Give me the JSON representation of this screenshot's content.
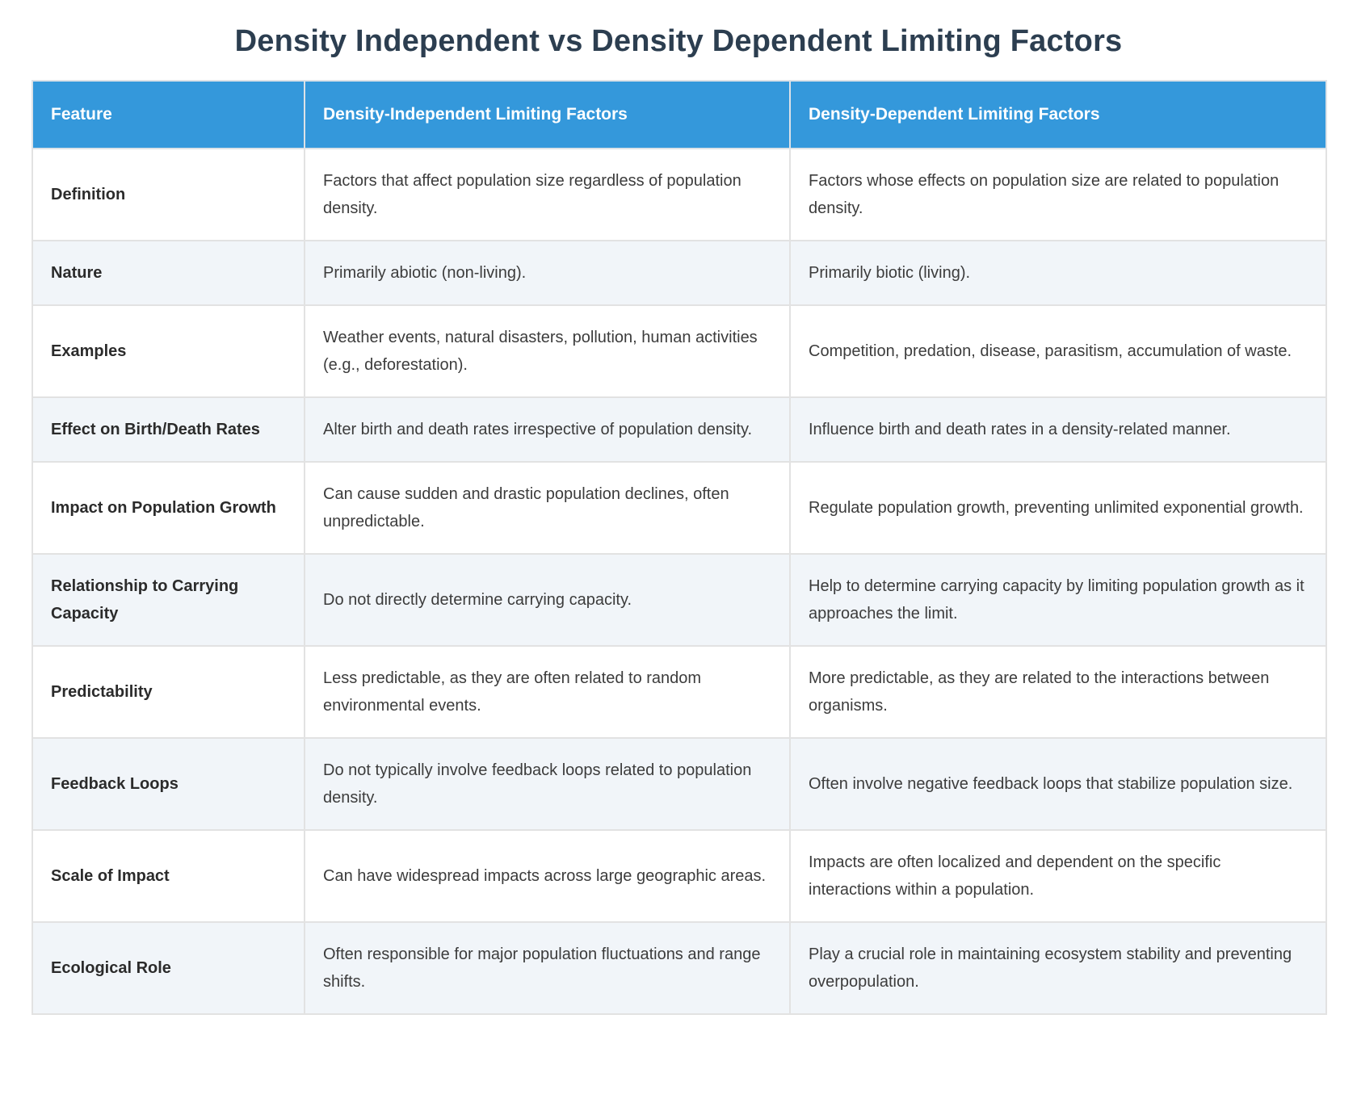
{
  "page": {
    "title": "Density Independent vs Density Dependent Limiting Factors"
  },
  "colors": {
    "header_bg": "#3498db",
    "header_text": "#ffffff",
    "row_alt_bg": "#f1f5f9",
    "row_bg": "#ffffff",
    "border": "#e2e2e2",
    "title_text": "#2c3e50",
    "body_text": "#3c3c3c"
  },
  "table": {
    "headers": [
      "Feature",
      "Density-Independent Limiting Factors",
      "Density-Dependent Limiting Factors"
    ],
    "rows": [
      {
        "feature": "Definition",
        "independent": "Factors that affect population size regardless of population density.",
        "dependent": "Factors whose effects on population size are related to population density."
      },
      {
        "feature": "Nature",
        "independent": "Primarily abiotic (non-living).",
        "dependent": "Primarily biotic (living)."
      },
      {
        "feature": "Examples",
        "independent": "Weather events, natural disasters, pollution, human activities (e.g., deforestation).",
        "dependent": "Competition, predation, disease, parasitism, accumulation of waste."
      },
      {
        "feature": "Effect on Birth/Death Rates",
        "independent": "Alter birth and death rates irrespective of population density.",
        "dependent": "Influence birth and death rates in a density-related manner."
      },
      {
        "feature": "Impact on Population Growth",
        "independent": "Can cause sudden and drastic population declines, often unpredictable.",
        "dependent": "Regulate population growth, preventing unlimited exponential growth."
      },
      {
        "feature": "Relationship to Carrying Capacity",
        "independent": "Do not directly determine carrying capacity.",
        "dependent": "Help to determine carrying capacity by limiting population growth as it approaches the limit."
      },
      {
        "feature": "Predictability",
        "independent": "Less predictable, as they are often related to random environmental events.",
        "dependent": "More predictable, as they are related to the interactions between organisms."
      },
      {
        "feature": "Feedback Loops",
        "independent": "Do not typically involve feedback loops related to population density.",
        "dependent": "Often involve negative feedback loops that stabilize population size."
      },
      {
        "feature": "Scale of Impact",
        "independent": "Can have widespread impacts across large geographic areas.",
        "dependent": "Impacts are often localized and dependent on the specific interactions within a population."
      },
      {
        "feature": "Ecological Role",
        "independent": "Often responsible for major population fluctuations and range shifts.",
        "dependent": "Play a crucial role in maintaining ecosystem stability and preventing overpopulation."
      }
    ]
  }
}
